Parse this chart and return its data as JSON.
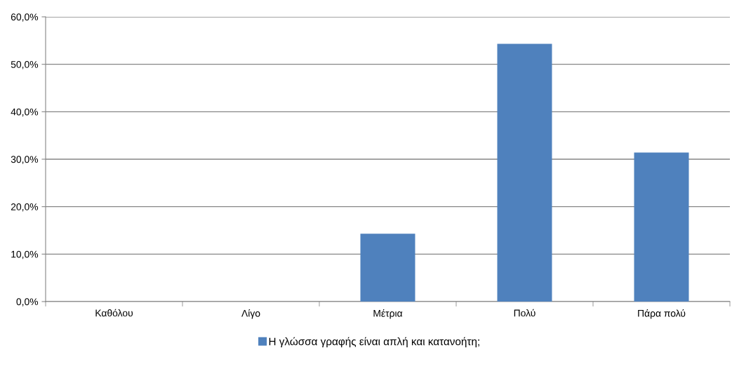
{
  "chart_data": {
    "type": "bar",
    "categories": [
      "Καθόλου",
      "Λίγο",
      "Μέτρια",
      "Πολύ",
      "Πάρα πολύ"
    ],
    "series": [
      {
        "name": "Η γλώσσα γραφής είναι απλή και κατανοήτη;",
        "color": "#4f81bd",
        "values": [
          0,
          0,
          14.3,
          54.3,
          31.4
        ]
      }
    ],
    "ylim": [
      0,
      60
    ],
    "yticks": [
      {
        "value": 0,
        "label": "0,0%"
      },
      {
        "value": 10,
        "label": "10,0%"
      },
      {
        "value": 20,
        "label": "20,0%"
      },
      {
        "value": 30,
        "label": "30,0%"
      },
      {
        "value": 40,
        "label": "40,0%"
      },
      {
        "value": 50,
        "label": "50,0%"
      },
      {
        "value": 60,
        "label": "60,0%"
      }
    ],
    "grid": "y",
    "legend": "bottom"
  }
}
